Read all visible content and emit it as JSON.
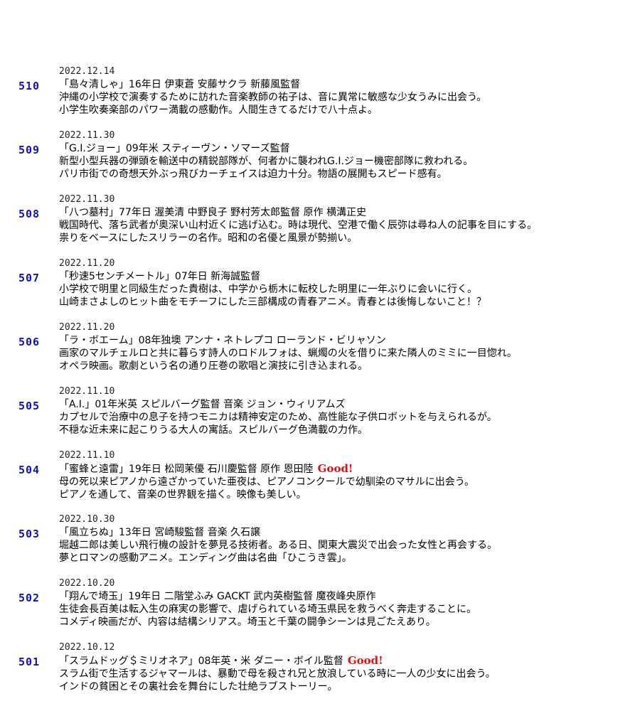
{
  "entries": [
    {
      "num": "510",
      "date": "2022.12.14",
      "title": "「島々清しゃ」16年日 伊東蒼 安藤サクラ 新藤風監督",
      "good": "",
      "lines": [
        "沖縄の小学校で演奏するために訪れた音楽教師の祐子は、音に異常に敏感な少女うみに出会う。",
        "小学生吹奏楽部のパワー満載の感動作。人間生きてるだけで八十点よ。"
      ]
    },
    {
      "num": "509",
      "date": "2022.11.30",
      "title": "「G.I.ジョー」09年米 スティーヴン・ソマーズ監督",
      "good": "",
      "lines": [
        "新型小型兵器の弾頭を輸送中の精鋭部隊が、何者かに襲われG.I.ジョー機密部隊に救われる。",
        "パリ市街での奇想天外ぶっ飛びカーチェイスは迫力十分。物語の展開もスピード感有。"
      ]
    },
    {
      "num": "508",
      "date": "2022.11.30",
      "title": "「八つ墓村」77年日 渥美清 中野良子 野村芳太郎監督 原作 横溝正史",
      "good": "",
      "lines": [
        "戦国時代、落ち武者が奥深い山村近くに逃げ込む。時は現代、空港で働く辰弥は尋ね人の記事を目にする。",
        "祟りをベースにしたスリラーの名作。昭和の名優と風景が勢揃い。"
      ]
    },
    {
      "num": "507",
      "date": "2022.11.20",
      "title": "「秒速5センチメートル」07年日 新海誠監督",
      "good": "",
      "lines": [
        "小学校で明里と同級生だった貴樹は、中学から栃木に転校した明里に一年ぶりに会いに行く。",
        "山崎まさよしのヒット曲をモチーフにした三部構成の青春アニメ。青春とは後悔しないこと！？"
      ]
    },
    {
      "num": "506",
      "date": "2022.11.20",
      "title": "「ラ・ボエーム」08年独墺 アンナ・ネトレプコ ローランド・ビリャソン",
      "good": "",
      "lines": [
        "画家のマルチェルロと共に暮らす詩人のロドルフォは、蝋燭の火を借りに来た隣人のミミに一目惚れ。",
        "オペラ映画。歌劇という名の通り圧巻の歌唱と演技に引き込まれる。"
      ]
    },
    {
      "num": "505",
      "date": "2022.11.10",
      "title": "「A.I.」01年米英 スピルバーグ監督 音楽 ジョン・ウィリアムズ",
      "good": "",
      "lines": [
        "カプセルで治療中の息子を持つモニカは精神安定のため、高性能な子供ロボットを与えられるが。",
        "不穏な近未来に起こりうる大人の寓話。スピルバーグ色満載の力作。"
      ]
    },
    {
      "num": "504",
      "date": "2022.11.10",
      "title": "「蜜蜂と遠雷」19年日 松岡茉優 石川慶監督 原作 恩田陸",
      "good": "Good!",
      "lines": [
        "母の死以来ピアノから遠ざかっていた亜夜は、ピアノコンクールで幼馴染のマサルに出会う。",
        "ピアノを通して、音楽の世界観を描く。映像も美しい。"
      ]
    },
    {
      "num": "503",
      "date": "2022.10.30",
      "title": "「風立ちぬ」13年日 宮崎駿監督 音楽 久石譲",
      "good": "",
      "lines": [
        "堀越二郎は美しい飛行機の設計を夢見る技術者。ある日、関東大震災で出会った女性と再会する。",
        "夢とロマンの感動アニメ。エンディング曲は名曲「ひこうき雲」。"
      ]
    },
    {
      "num": "502",
      "date": "2022.10.20",
      "title": "「翔んで埼玉」19年日 二階堂ふみ GACKT 武内英樹監督 魔夜峰央原作",
      "good": "",
      "lines": [
        "生徒会長百美は転入生の麻実の影響で、虐げられている埼玉県民を救うべく奔走することに。",
        "コメディ映画だが、内容は結構シリアス。埼玉と千葉の闘争シーンは見ごたえあり。"
      ]
    },
    {
      "num": "501",
      "date": "2022.10.12",
      "title": "「スラムドッグ＄ミリオネア」08年英・米 ダニー・ボイル監督",
      "good": "Good!",
      "lines": [
        "スラム街で生活するジャマールは、暴動で母を殺され兄と放浪している時に一人の少女に出会う。",
        "インドの貧困とその裏社会を舞台にした壮絶ラブストーリー。"
      ]
    }
  ]
}
